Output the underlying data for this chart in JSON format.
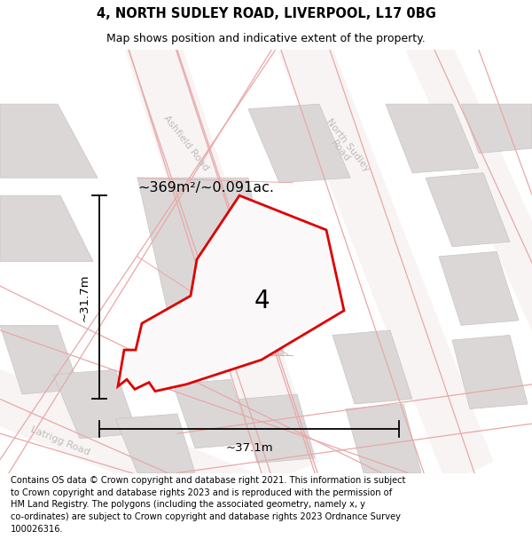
{
  "title_line1": "4, NORTH SUDLEY ROAD, LIVERPOOL, L17 0BG",
  "title_line2": "Map shows position and indicative extent of the property.",
  "footer_text": "Contains OS data © Crown copyright and database right 2021. This information is subject to Crown copyright and database rights 2023 and is reproduced with the permission of HM Land Registry. The polygons (including the associated geometry, namely x, y co-ordinates) are subject to Crown copyright and database rights 2023 Ordnance Survey 100026316.",
  "area_label": "~369m²/~0.091ac.",
  "width_label": "~37.1m",
  "height_label": "~31.7m",
  "property_number": "4",
  "map_bg": "#f2eeee",
  "property_color": "#dd0000",
  "road_label_color": "#c0bcbc",
  "dim_line_color": "#1a1a1a",
  "block_fill": "#dbd7d7",
  "block_edge": "#c8c4c4",
  "road_band_fill": "#f8f4f4",
  "red_line_color": "#e8a8a8"
}
